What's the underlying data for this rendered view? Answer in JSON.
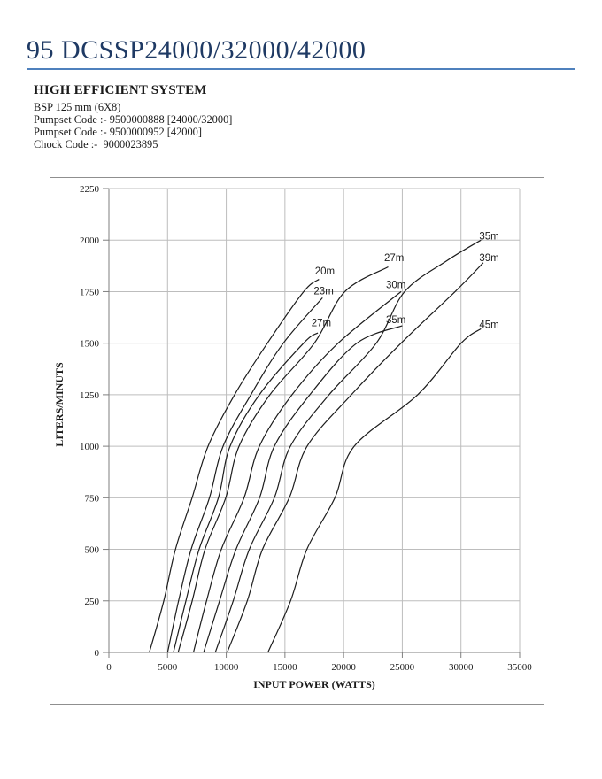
{
  "page": {
    "title": "95 DCSSP24000/32000/42000",
    "heading": "HIGH EFFICIENT SYSTEM",
    "spec_lines": [
      "BSP 125 mm (6X8)",
      "Pumpset Code :- 9500000888 [24000/32000]",
      "Pumpset Code :- 9500000952 [42000]",
      "Chock Code :-  9000023895"
    ],
    "colors": {
      "title": "#1f3a64",
      "rule": "#4f81bd"
    }
  },
  "chart_data": {
    "type": "line",
    "title": "",
    "xlabel": "INPUT POWER (WATTS)",
    "ylabel": "LITERS/MINUTS",
    "xlim": [
      0,
      35000
    ],
    "ylim": [
      0,
      2250
    ],
    "x_ticks": [
      0,
      5000,
      10000,
      15000,
      20000,
      25000,
      30000,
      35000
    ],
    "y_ticks": [
      0,
      250,
      500,
      750,
      1000,
      1250,
      1500,
      1750,
      2000,
      2250
    ],
    "grid": true,
    "legend": "inline-curve-labels",
    "colors": {
      "curve": "#1c1c1c",
      "grid": "#bdbdbd",
      "axis": "#7f7f7f",
      "tick_text": "#1a1a1a"
    },
    "series": [
      {
        "name": "20m",
        "label_at": [
          18400,
          1850
        ],
        "points": [
          [
            3450,
            0
          ],
          [
            4680,
            250
          ],
          [
            5670,
            500
          ],
          [
            7090,
            750
          ],
          [
            8450,
            1000
          ],
          [
            10710,
            1250
          ],
          [
            13500,
            1500
          ],
          [
            16600,
            1750
          ],
          [
            17900,
            1810
          ]
        ]
      },
      {
        "name": "23m",
        "label_at": [
          18300,
          1755
        ],
        "points": [
          [
            5000,
            0
          ],
          [
            5940,
            250
          ],
          [
            7010,
            500
          ],
          [
            8570,
            750
          ],
          [
            9730,
            1000
          ],
          [
            12100,
            1250
          ],
          [
            14860,
            1500
          ],
          [
            18200,
            1720
          ]
        ]
      },
      {
        "name": "27m",
        "label_at": [
          18100,
          1600
        ],
        "points": [
          [
            5500,
            0
          ],
          [
            6560,
            250
          ],
          [
            7690,
            500
          ],
          [
            9330,
            750
          ],
          [
            10330,
            1000
          ],
          [
            12820,
            1250
          ],
          [
            16590,
            1500
          ],
          [
            17800,
            1550
          ]
        ]
      },
      {
        "name": "27m",
        "label_at": [
          24300,
          1915
        ],
        "points": [
          [
            5900,
            0
          ],
          [
            7100,
            250
          ],
          [
            8190,
            500
          ],
          [
            9960,
            750
          ],
          [
            11090,
            1000
          ],
          [
            13720,
            1250
          ],
          [
            17500,
            1500
          ],
          [
            20100,
            1750
          ],
          [
            23800,
            1870
          ]
        ]
      },
      {
        "name": "30m",
        "label_at": [
          24450,
          1785
        ],
        "points": [
          [
            7200,
            0
          ],
          [
            8320,
            250
          ],
          [
            9580,
            500
          ],
          [
            11520,
            750
          ],
          [
            12820,
            1000
          ],
          [
            15610,
            1250
          ],
          [
            19530,
            1500
          ],
          [
            24900,
            1750
          ]
        ]
      },
      {
        "name": "35m",
        "label_at": [
          24450,
          1615
        ],
        "points": [
          [
            8070,
            0
          ],
          [
            9430,
            250
          ],
          [
            10830,
            500
          ],
          [
            12840,
            750
          ],
          [
            14100,
            1000
          ],
          [
            17120,
            1250
          ],
          [
            21120,
            1500
          ],
          [
            25000,
            1585
          ]
        ]
      },
      {
        "name": "35m",
        "label_at": [
          32400,
          2020
        ],
        "points": [
          [
            9070,
            0
          ],
          [
            10590,
            250
          ],
          [
            11960,
            500
          ],
          [
            14100,
            750
          ],
          [
            15460,
            1000
          ],
          [
            18760,
            1250
          ],
          [
            22780,
            1500
          ],
          [
            25200,
            1750
          ],
          [
            28800,
            1900
          ],
          [
            31700,
            2000
          ]
        ]
      },
      {
        "name": "39m",
        "label_at": [
          32400,
          1915
        ],
        "points": [
          [
            10080,
            0
          ],
          [
            11790,
            250
          ],
          [
            13090,
            500
          ],
          [
            15370,
            750
          ],
          [
            16890,
            1000
          ],
          [
            20660,
            1250
          ],
          [
            24890,
            1500
          ],
          [
            29500,
            1750
          ],
          [
            31900,
            1890
          ]
        ]
      },
      {
        "name": "45m",
        "label_at": [
          32400,
          1590
        ],
        "points": [
          [
            13550,
            0
          ],
          [
            15480,
            250
          ],
          [
            16870,
            500
          ],
          [
            19260,
            750
          ],
          [
            20900,
            1000
          ],
          [
            26310,
            1250
          ],
          [
            30010,
            1500
          ],
          [
            31700,
            1570
          ]
        ]
      }
    ]
  }
}
